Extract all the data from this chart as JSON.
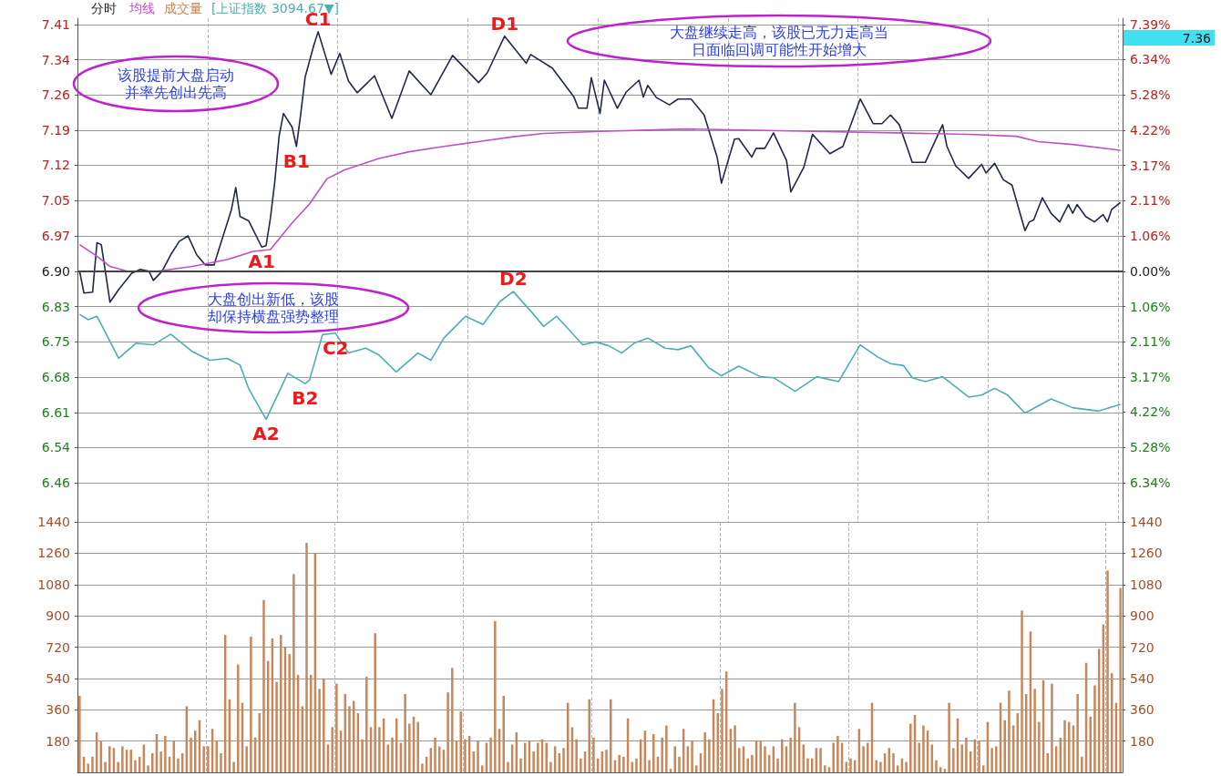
{
  "chart_data": [
    {
      "type": "line",
      "title": "分时",
      "categories": [
        null,
        null,
        null,
        null,
        null,
        null,
        null,
        null,
        null,
        null,
        null,
        null,
        null,
        null,
        null,
        null,
        null,
        null,
        null,
        null,
        null,
        null,
        null,
        null,
        null,
        null,
        null,
        null,
        null,
        null,
        null,
        null,
        null,
        null,
        null,
        null,
        null,
        null,
        null,
        null,
        null,
        null,
        null,
        null,
        null,
        null,
        null,
        null,
        null,
        null,
        null,
        null,
        null,
        null,
        null,
        null,
        null,
        null,
        null,
        null,
        null,
        null,
        null,
        null,
        null,
        null,
        null,
        null,
        null,
        null,
        null,
        null,
        null,
        null,
        null,
        null,
        null,
        null,
        null,
        null,
        null,
        null,
        null,
        null,
        null,
        null,
        null,
        null,
        null,
        null,
        null,
        null,
        null,
        null,
        null,
        null,
        null,
        null,
        null,
        null,
        null,
        null,
        null,
        null,
        null,
        null,
        null,
        null,
        null,
        null,
        null,
        null,
        null,
        null,
        null,
        null,
        null,
        null,
        null,
        null,
        null,
        null,
        null,
        null,
        null,
        null,
        null,
        null,
        null,
        null,
        null,
        null,
        null,
        null,
        null,
        null,
        null,
        null,
        null,
        null,
        null,
        null,
        null,
        null,
        null,
        null,
        null,
        null,
        null,
        null,
        null,
        null,
        null,
        null,
        null,
        null,
        null,
        null,
        null,
        null,
        null,
        null,
        null,
        null,
        null,
        null,
        null,
        null,
        null,
        null,
        null,
        null,
        null,
        null,
        null,
        null,
        null,
        null,
        null,
        null,
        null,
        null,
        null,
        null,
        null,
        null,
        null,
        null,
        null,
        null,
        null,
        null,
        null,
        null,
        null,
        null,
        null,
        null,
        null,
        null,
        null,
        null,
        null,
        null,
        null,
        null,
        null,
        null,
        null,
        null,
        null,
        null,
        null,
        null,
        null,
        null,
        null,
        null,
        null,
        null,
        null,
        null,
        null,
        null,
        null,
        null,
        null,
        null,
        null,
        null,
        null,
        null,
        null,
        null,
        null,
        null,
        null,
        null,
        null,
        null,
        null
      ],
      "ylim": [
        6.382,
        7.423
      ],
      "yticks": [
        {
          "value": 6.463,
          "label": "6.46"
        },
        {
          "value": 6.536,
          "label": "6.54"
        },
        {
          "value": 6.608,
          "label": "6.61"
        },
        {
          "value": 6.681,
          "label": "6.68"
        },
        {
          "value": 6.754,
          "label": "6.75"
        },
        {
          "value": 6.827,
          "label": "6.83"
        },
        {
          "value": 6.9,
          "label": "6.90"
        },
        {
          "value": 6.973,
          "label": "6.97"
        },
        {
          "value": 7.046,
          "label": "7.05"
        },
        {
          "value": 7.119,
          "label": "7.12"
        },
        {
          "value": 7.191,
          "label": "7.19"
        },
        {
          "value": 7.264,
          "label": "7.26"
        },
        {
          "value": 7.337,
          "label": "7.34"
        },
        {
          "value": 7.41,
          "label": "7.41"
        }
      ],
      "y2lim": [
        -7.51,
        7.58
      ],
      "y2ticks": [
        {
          "value": -6.34,
          "label": "6.34%"
        },
        {
          "value": -5.28,
          "label": "5.28%"
        },
        {
          "value": -4.22,
          "label": "4.22%"
        },
        {
          "value": -3.17,
          "label": "3.17%"
        },
        {
          "value": -2.11,
          "label": "2.11%"
        },
        {
          "value": -1.06,
          "label": "1.06%"
        },
        {
          "value": 0,
          "label": "0.00%"
        },
        {
          "value": 1.06,
          "label": "1.06%"
        },
        {
          "value": 2.11,
          "label": "2.11%"
        },
        {
          "value": 3.17,
          "label": "3.17%"
        },
        {
          "value": 4.22,
          "label": "4.22%"
        },
        {
          "value": 5.28,
          "label": "5.28%"
        },
        {
          "value": 6.34,
          "label": "6.34%"
        },
        {
          "value": 7.39,
          "label": "7.39%"
        }
      ],
      "grid": true,
      "tick_labels": "y",
      "line_style": "solid",
      "ref_lines": [
        {
          "axis": "y",
          "value": 6.9
        }
      ],
      "series": [
        {
          "color": "#1f2a4a",
          "values": [
            6.9,
            6.855,
            null,
            6.857,
            6.959,
            6.955,
            null,
            6.836,
            null,
            6.862,
            null,
            null,
            6.896,
            null,
            6.904,
            null,
            6.9,
            6.881,
            null,
            6.9,
            null,
            6.934,
            null,
            6.962,
            null,
            6.973,
            null,
            6.934,
            null,
            6.913,
            null,
            6.913,
            6.942,
            null,
            null,
            7.027,
            7.073,
            7.013,
            null,
            7.004,
            null,
            null,
            6.95,
            6.953,
            7.01,
            7.085,
            7.179,
            7.226,
            null,
            7.198,
            7.158,
            7.226,
            7.301,
            null,
            7.367,
            7.395,
            null,
            null,
            7.307,
            null,
            7.35,
            null,
            7.293,
            null,
            7.269,
            null,
            null,
            null,
            7.304,
            null,
            null,
            null,
            7.216,
            null,
            null,
            null,
            7.314,
            null,
            null,
            null,
            null,
            7.265,
            null,
            null,
            null,
            null,
            7.346,
            null,
            null,
            null,
            null,
            null,
            7.29,
            null,
            7.31,
            null,
            null,
            null,
            7.386,
            null,
            null,
            null,
            null,
            7.33,
            7.348,
            null,
            null,
            null,
            null,
            7.32,
            null,
            null,
            null,
            null,
            7.26,
            7.237,
            null,
            7.237,
            7.3,
            null,
            7.226,
            7.295,
            null,
            null,
            7.237,
            null,
            7.27,
            null,
            null,
            7.295,
            7.26,
            7.284,
            null,
            7.259,
            null,
            null,
            7.244,
            null,
            7.256,
            null,
            null,
            7.256,
            null,
            null,
            7.223,
            null,
            null,
            7.136,
            7.082,
            null,
            null,
            7.173,
            7.174,
            null,
            null,
            7.136,
            7.154,
            null,
            7.154,
            null,
            7.186,
            null,
            null,
            7.129,
            7.064,
            null,
            null,
            7.115,
            null,
            7.183,
            null,
            null,
            null,
            7.143,
            null,
            null,
            7.158,
            null,
            null,
            null,
            7.256,
            null,
            null,
            7.205,
            null,
            7.205,
            null,
            7.223,
            null,
            7.203,
            null,
            null,
            7.125,
            null,
            null,
            7.125,
            null,
            null,
            null,
            7.203,
            7.158,
            null,
            7.118,
            null,
            null,
            7.092,
            null,
            null,
            7.121,
            7.103,
            null,
            7.123,
            null,
            7.089,
            null,
            7.078,
            null,
            null,
            6.984,
            7.002,
            7.006,
            null,
            7.052,
            null,
            7.02,
            null,
            7.002,
            null,
            7.038,
            7.02,
            7.038,
            null,
            7.013,
            null,
            7.002,
            null,
            7.017,
            7.002,
            7.028,
            null,
            7.042
          ]
        },
        {
          "name": "均线",
          "color": "#c050c8",
          "values": [
            6.955,
            null,
            null,
            null,
            6.931,
            null,
            null,
            6.91,
            null,
            null,
            null,
            6.9,
            null,
            null,
            null,
            null,
            null,
            null,
            6.9,
            null,
            null,
            null,
            null,
            null,
            null,
            null,
            6.91,
            null,
            null,
            null,
            null,
            null,
            null,
            null,
            6.924,
            null,
            null,
            null,
            null,
            null,
            6.941,
            null,
            null,
            null,
            6.945,
            null,
            null,
            null,
            null,
            7.0,
            null,
            null,
            null,
            7.039,
            null,
            null,
            null,
            7.091,
            null,
            null,
            null,
            7.109,
            null,
            null,
            null,
            null,
            null,
            null,
            null,
            7.133,
            null,
            null,
            null,
            null,
            null,
            null,
            7.147,
            null,
            null,
            null,
            null,
            null,
            null,
            null,
            7.158,
            null,
            null,
            null,
            null,
            null,
            null,
            null,
            7.168,
            null,
            null,
            null,
            null,
            null,
            null,
            null,
            7.178,
            null,
            null,
            null,
            null,
            null,
            null,
            7.185,
            null,
            null,
            null,
            null,
            null,
            null,
            null,
            null,
            null,
            null,
            null,
            null,
            7.189,
            null,
            null,
            null,
            null,
            null,
            null,
            null,
            null,
            null,
            null,
            null,
            null,
            null,
            null,
            null,
            null,
            null,
            null,
            null,
            7.194,
            null,
            null,
            null,
            null,
            null,
            null,
            null,
            null,
            null,
            null,
            null,
            null,
            null,
            null,
            null,
            null,
            null,
            null,
            null,
            null,
            null,
            null,
            null,
            7.19,
            null,
            null,
            null,
            null,
            null,
            null,
            null,
            null,
            null,
            null,
            null,
            null,
            null,
            null,
            null,
            null,
            null,
            null,
            null,
            null,
            null,
            null,
            null,
            7.186,
            null,
            null,
            null,
            null,
            null,
            null,
            null,
            null,
            null,
            null,
            null,
            null,
            null,
            null,
            null,
            null,
            7.183,
            null,
            null,
            null,
            null,
            null,
            null,
            null,
            null,
            null,
            null,
            7.179,
            null,
            null,
            null,
            null,
            7.168,
            null,
            null,
            null,
            null,
            null,
            null,
            null,
            7.162,
            null,
            null,
            null,
            null,
            null,
            null,
            null,
            null,
            null,
            null,
            7.15
          ]
        },
        {
          "name": "[上证指数 3094.67▼]",
          "color": "#4ab0b0",
          "values": [
            6.811,
            null,
            6.8,
            null,
            6.807,
            null,
            null,
            6.755,
            null,
            6.72,
            null,
            null,
            null,
            6.751,
            null,
            null,
            null,
            6.748,
            null,
            null,
            null,
            6.77,
            null,
            null,
            null,
            null,
            6.734,
            null,
            null,
            null,
            6.716,
            null,
            null,
            null,
            6.72,
            null,
            null,
            6.706,
            null,
            6.657,
            null,
            null,
            null,
            6.594,
            null,
            null,
            null,
            null,
            6.689,
            null,
            null,
            null,
            6.668,
            6.675,
            null,
            null,
            6.769,
            null,
            null,
            6.772,
            null,
            null,
            6.731,
            null,
            null,
            null,
            6.741,
            null,
            null,
            6.727,
            null,
            null,
            null,
            6.692,
            null,
            null,
            null,
            null,
            6.731,
            null,
            null,
            6.716,
            null,
            null,
            6.762,
            null,
            null,
            null,
            null,
            6.807,
            null,
            null,
            null,
            6.79,
            null,
            null,
            null,
            6.838,
            null,
            null,
            6.858,
            null,
            null,
            null,
            6.818,
            null,
            null,
            6.786,
            null,
            null,
            6.807,
            null,
            null,
            null,
            null,
            null,
            6.748,
            null,
            null,
            6.754,
            null,
            null,
            6.746,
            null,
            null,
            6.731,
            null,
            null,
            6.752,
            null,
            null,
            6.762,
            null,
            null,
            null,
            6.741,
            null,
            null,
            6.738,
            null,
            null,
            6.746,
            null,
            null,
            null,
            6.701,
            null,
            null,
            6.684,
            null,
            null,
            null,
            6.704,
            null,
            null,
            null,
            null,
            6.682,
            null,
            null,
            6.68,
            null,
            null,
            null,
            null,
            6.652,
            null,
            null,
            null,
            null,
            6.682,
            null,
            null,
            null,
            null,
            6.672,
            null,
            null,
            null,
            null,
            6.748,
            null,
            null,
            null,
            6.723,
            null,
            null,
            6.709,
            null,
            null,
            6.705,
            null,
            6.68,
            null,
            null,
            6.672,
            null,
            null,
            null,
            6.682,
            null,
            null,
            null,
            null,
            null,
            6.64,
            null,
            null,
            6.644,
            null,
            null,
            6.658,
            null,
            null,
            6.644,
            null,
            null,
            null,
            6.607,
            null,
            null,
            null,
            null,
            null,
            6.636,
            null,
            null,
            null,
            null,
            6.618,
            null,
            null,
            null,
            null,
            null,
            6.611,
            null,
            null,
            null,
            null,
            6.625
          ]
        }
      ],
      "annotations": [
        "该股提前大盘启动并率先创出先高",
        "大盘继续走高，该股已无力走高当日面临回调可能性开始增大",
        "大盘创出新低，该股却保持横盘强势整理",
        {
          "text": "A1",
          "y": 6.95
        },
        {
          "text": "B1",
          "y": 7.158
        },
        {
          "text": "C1",
          "y": 7.395
        },
        {
          "text": "D1",
          "y": 7.386
        },
        {
          "text": "A2",
          "y": 6.594
        },
        {
          "text": "B2",
          "y": 6.668
        },
        {
          "text": "C2",
          "y": 6.772
        },
        {
          "text": "D2",
          "y": 6.858
        },
        "7.36"
      ]
    },
    {
      "type": "bar",
      "categories": [
        null,
        null,
        null,
        null,
        null,
        null,
        null,
        null,
        null,
        null,
        null,
        null,
        null,
        null,
        null,
        null,
        null,
        null,
        null,
        null,
        null,
        null,
        null,
        null,
        null,
        null,
        null,
        null,
        null,
        null,
        null,
        null,
        null,
        null,
        null,
        null,
        null,
        null,
        null,
        null,
        null,
        null,
        null,
        null,
        null,
        null,
        null,
        null,
        null,
        null,
        null,
        null,
        null,
        null,
        null,
        null,
        null,
        null,
        null,
        null,
        null,
        null,
        null,
        null,
        null,
        null,
        null,
        null,
        null,
        null,
        null,
        null,
        null,
        null,
        null,
        null,
        null,
        null,
        null,
        null,
        null,
        null,
        null,
        null,
        null,
        null,
        null,
        null,
        null,
        null,
        null,
        null,
        null,
        null,
        null,
        null,
        null,
        null,
        null,
        null,
        null,
        null,
        null,
        null,
        null,
        null,
        null,
        null,
        null,
        null,
        null,
        null,
        null,
        null,
        null,
        null,
        null,
        null,
        null,
        null,
        null,
        null,
        null,
        null,
        null,
        null,
        null,
        null,
        null,
        null,
        null,
        null,
        null,
        null,
        null,
        null,
        null,
        null,
        null,
        null,
        null,
        null,
        null,
        null,
        null,
        null,
        null,
        null,
        null,
        null,
        null,
        null,
        null,
        null,
        null,
        null,
        null,
        null,
        null,
        null,
        null,
        null,
        null,
        null,
        null,
        null,
        null,
        null,
        null,
        null,
        null,
        null,
        null,
        null,
        null,
        null,
        null,
        null,
        null,
        null,
        null,
        null,
        null,
        null,
        null,
        null,
        null,
        null,
        null,
        null,
        null,
        null,
        null,
        null,
        null,
        null,
        null,
        null,
        null,
        null,
        null,
        null,
        null,
        null,
        null,
        null,
        null,
        null,
        null,
        null,
        null,
        null,
        null,
        null,
        null,
        null,
        null,
        null,
        null,
        null,
        null,
        null,
        null,
        null,
        null,
        null,
        null,
        null,
        null,
        null,
        null,
        null,
        null,
        null,
        null,
        null,
        null,
        null,
        null,
        null,
        null,
        null,
        null,
        null
      ],
      "ylim": [
        0,
        1440
      ],
      "yticks": [
        180,
        360,
        540,
        720,
        900,
        1080,
        1260,
        1440
      ],
      "y2lim": [
        0,
        1440
      ],
      "y2ticks": [
        180,
        360,
        540,
        720,
        900,
        1080,
        1260,
        1440
      ],
      "grid": true,
      "tick_labels": "y",
      "series": [
        {
          "name": "成交量",
          "color": "#c8875a",
          "values": [
            440,
            90,
            50,
            90,
            230,
            180,
            60,
            150,
            140,
            60,
            150,
            130,
            130,
            70,
            90,
            160,
            40,
            110,
            220,
            120,
            210,
            90,
            180,
            80,
            110,
            380,
            200,
            240,
            300,
            150,
            150,
            250,
            180,
            110,
            790,
            420,
            60,
            620,
            400,
            150,
            780,
            200,
            340,
            990,
            640,
            770,
            520,
            790,
            720,
            680,
            1140,
            560,
            380,
            1320,
            560,
            1260,
            480,
            540,
            160,
            260,
            510,
            240,
            450,
            380,
            410,
            340,
            190,
            550,
            260,
            800,
            260,
            310,
            160,
            200,
            310,
            170,
            450,
            280,
            320,
            290,
            50,
            90,
            140,
            200,
            150,
            130,
            460,
            600,
            180,
            350,
            190,
            210,
            120,
            180,
            40,
            170,
            200,
            870,
            250,
            440,
            60,
            160,
            230,
            80,
            170,
            180,
            120,
            170,
            190,
            170,
            60,
            150,
            110,
            140,
            400,
            260,
            190,
            80,
            120,
            420,
            200,
            80,
            120,
            130,
            420,
            70,
            100,
            90,
            310,
            60,
            80,
            190,
            240,
            70,
            220,
            90,
            200,
            270,
            20,
            150,
            90,
            250,
            150,
            180,
            40,
            110,
            230,
            190,
            420,
            340,
            480,
            580,
            250,
            270,
            140,
            150,
            80,
            100,
            180,
            180,
            150,
            100,
            150,
            80,
            190,
            150,
            200,
            400,
            260,
            160,
            80,
            80,
            140,
            140,
            40,
            30,
            170,
            210,
            170,
            60,
            80,
            70,
            250,
            150,
            170,
            400,
            70,
            60,
            110,
            140,
            110,
            40,
            80,
            60,
            280,
            330,
            170,
            270,
            240,
            160,
            70,
            30,
            20,
            400,
            140,
            310,
            160,
            200,
            120,
            190,
            180,
            40,
            290,
            140,
            150,
            400,
            300,
            470,
            270,
            340,
            930,
            450,
            810,
            480,
            290,
            530,
            110,
            510,
            150,
            200,
            300,
            290,
            270,
            450,
            90,
            630,
            320,
            500,
            710,
            850,
            1160,
            570,
            400,
            1060
          ]
        }
      ]
    }
  ]
}
